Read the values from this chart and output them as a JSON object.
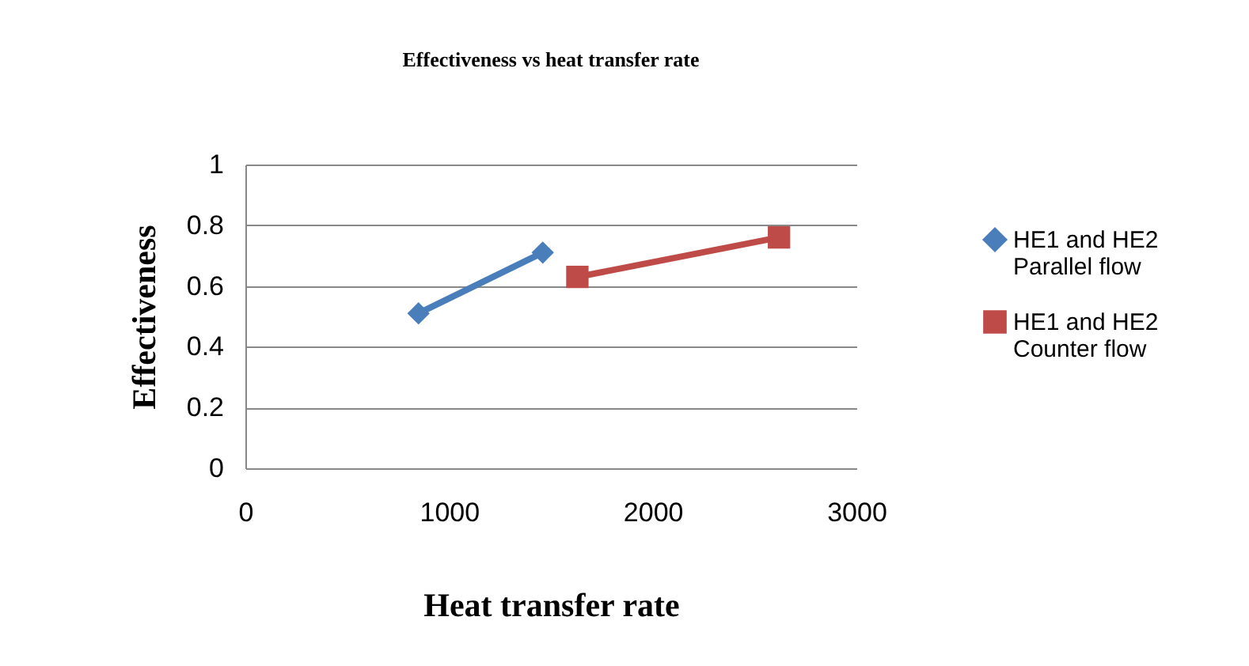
{
  "chart_data": {
    "type": "line",
    "title": "Effectiveness vs heat transfer rate",
    "xlabel": "Heat transfer rate",
    "ylabel": "Effectiveness",
    "xlim": [
      0,
      3000
    ],
    "xticks": [
      0,
      1000,
      2000,
      3000
    ],
    "ylim": [
      0,
      1
    ],
    "yticks": [
      0,
      0.2,
      0.4,
      0.6,
      0.8,
      1
    ],
    "grid": "y",
    "legend": "right",
    "series": [
      {
        "name": "HE1 and HE2 Parallel flow",
        "color": "#4a7ebb",
        "marker": "diamond",
        "x": [
          850,
          1460
        ],
        "values": [
          0.51,
          0.71
        ]
      },
      {
        "name": "HE1 and HE2 Counter flow",
        "color": "#be4b48",
        "marker": "square",
        "x": [
          1630,
          2620
        ],
        "values": [
          0.63,
          0.76
        ]
      }
    ]
  }
}
